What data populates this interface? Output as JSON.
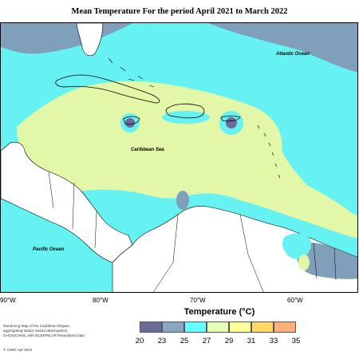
{
  "title": "Mean Temperature For the period April 2021 to March 2022",
  "map_labels": {
    "atlantic": "Atlantic Ocean",
    "caribbean": "Caribbean Sea",
    "pacific": "Pacific Ocean"
  },
  "longitude_ticks": [
    "90°W",
    "80°W",
    "70°W",
    "60°W"
  ],
  "footnote": {
    "line1": "Monitoring Map of the Caribbean Region,",
    "line2": "aggregating station based observations,",
    "line3": "GHCN/CAMS, with NCEP/NCAR Reanalysis Data",
    "credit": "© CIMH Apr-2022"
  },
  "legend": {
    "title": "Temperature (°C)",
    "labels": [
      "20",
      "23",
      "25",
      "27",
      "29",
      "31",
      "33",
      "35"
    ],
    "colors": [
      "#6b6b96",
      "#8aa6c0",
      "#66ffff",
      "#e4ffb4",
      "#ffff99",
      "#ffd966",
      "#ffb07a",
      "#ffa0a0"
    ]
  },
  "palette": {
    "ocean_blue": "#66f2f2",
    "ocean_slate": "#7f9fba",
    "land_warm": "#e2f7a8",
    "land_plain": "#ffffff",
    "hotspot": "#6a6a99"
  }
}
